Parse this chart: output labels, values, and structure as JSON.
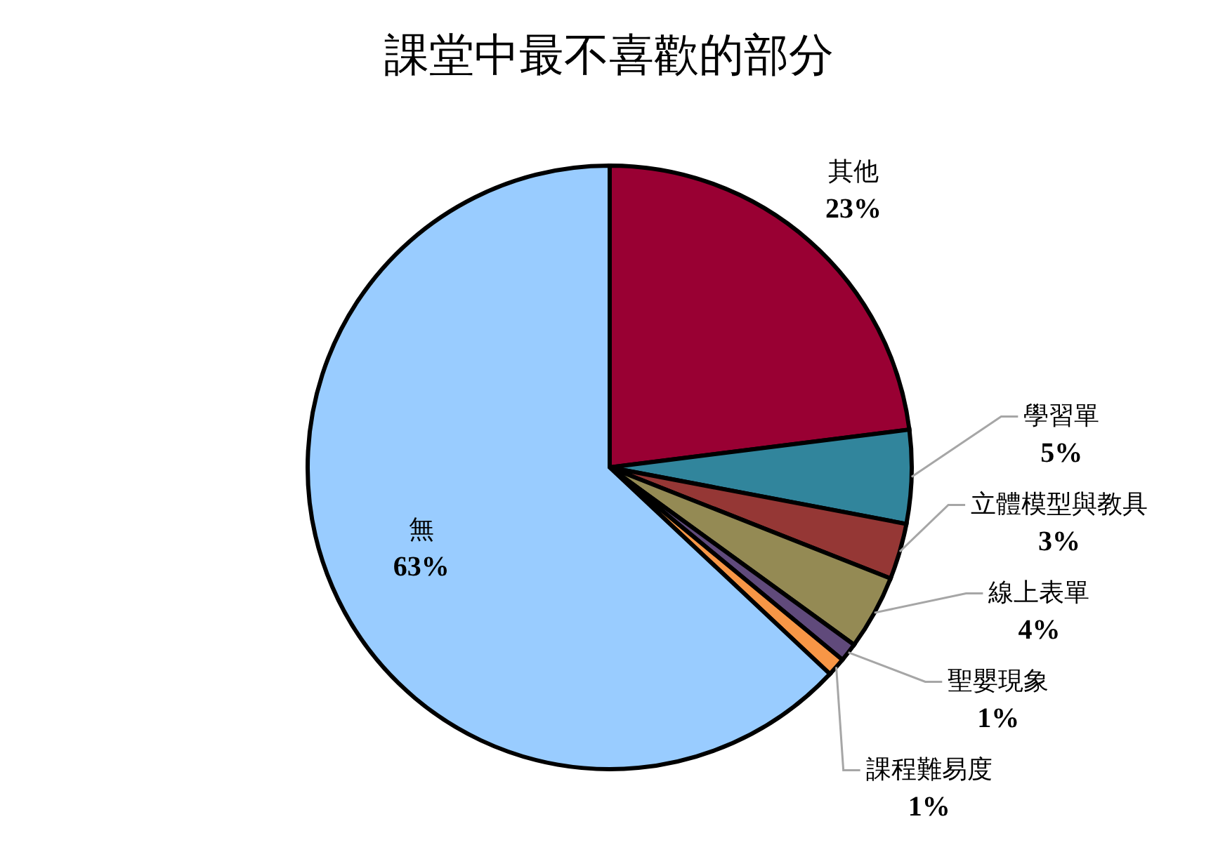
{
  "chart_data": {
    "type": "pie",
    "title": "課堂中最不喜歡的部分",
    "categories": [
      "其他",
      "學習單",
      "立體模型與教具",
      "線上表單",
      "聖嬰現象",
      "課程難易度",
      "無"
    ],
    "values": [
      23,
      5,
      3,
      4,
      1,
      1,
      63
    ],
    "colors": [
      "#990033",
      "#31859c",
      "#953735",
      "#948a54",
      "#604a7b",
      "#f79646",
      "#99ccff"
    ],
    "value_labels": [
      "23%",
      "5%",
      "3%",
      "4%",
      "1%",
      "1%",
      "63%"
    ]
  }
}
